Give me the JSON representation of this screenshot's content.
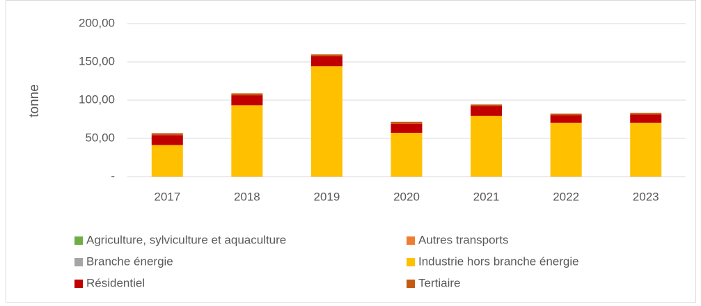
{
  "chart_data": {
    "type": "stacked_bar",
    "y_label": "tonne",
    "categories": [
      "2017",
      "2018",
      "2019",
      "2020",
      "2021",
      "2022",
      "2023"
    ],
    "series": [
      {
        "name": "Agriculture, sylviculture et aquaculture",
        "color": "#70ad47",
        "values": [
          0,
          0,
          0,
          0,
          0,
          0,
          0
        ]
      },
      {
        "name": "Autres transports",
        "color": "#ed7d31",
        "values": [
          0.3,
          0.3,
          0.3,
          0.3,
          0.3,
          0.3,
          0.3
        ]
      },
      {
        "name": "Branche énergie",
        "color": "#a5a5a5",
        "values": [
          0,
          0,
          0,
          0,
          0,
          0,
          0
        ]
      },
      {
        "name": "Industrie hors branche énergie",
        "color": "#ffc000",
        "values": [
          41,
          93,
          144,
          57,
          79,
          70,
          70
        ]
      },
      {
        "name": "Résidentiel",
        "color": "#c00000",
        "values": [
          13,
          13,
          13,
          12,
          13,
          10,
          11
        ]
      },
      {
        "name": "Tertiaire",
        "color": "#c55a11",
        "values": [
          2.5,
          2.5,
          2.5,
          2.5,
          2,
          2,
          2
        ]
      }
    ],
    "ylim": [
      0,
      200
    ],
    "yticks": [
      {
        "value": 0,
        "label": "-"
      },
      {
        "value": 50,
        "label": "50,00"
      },
      {
        "value": 100,
        "label": "100,00"
      },
      {
        "value": 150,
        "label": "150,00"
      },
      {
        "value": 200,
        "label": "200,00"
      }
    ],
    "grid": true
  }
}
